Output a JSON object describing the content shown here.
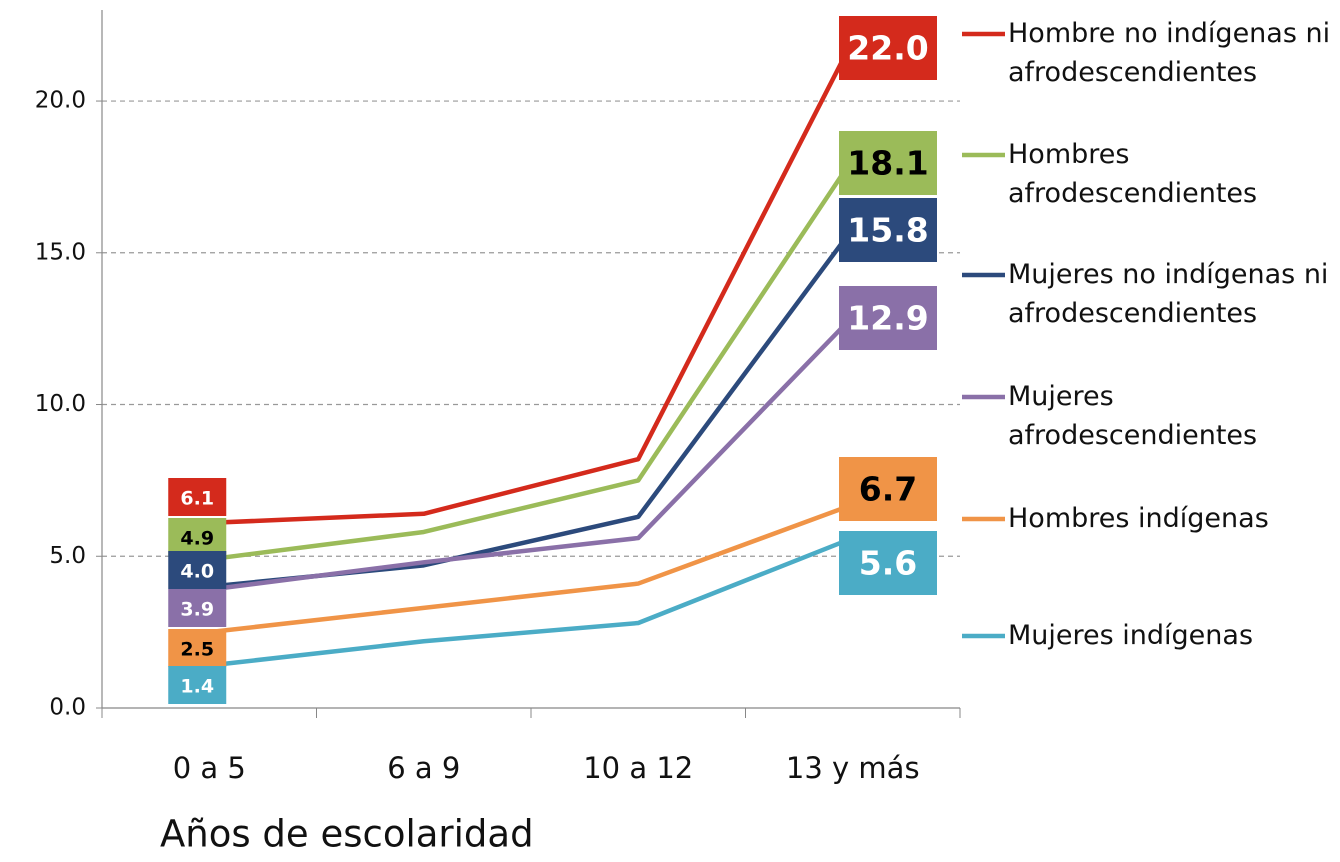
{
  "chart_data": {
    "type": "line",
    "x_label": "Años de escolaridad",
    "categories": [
      "0 a 5",
      "6 a 9",
      "10 a 12",
      "13 y más"
    ],
    "ylim": [
      0,
      23
    ],
    "yticks": [
      {
        "value": 0,
        "label": "0.0"
      },
      {
        "value": 5,
        "label": "5.0"
      },
      {
        "value": 10,
        "label": "10.0"
      },
      {
        "value": 15,
        "label": "15.0"
      },
      {
        "value": 20,
        "label": "20.0"
      }
    ],
    "grid": true,
    "legend": "right",
    "series": [
      {
        "name": "Hombre no indígenas ni afrodescendientes",
        "color": "#d42a1c",
        "values": [
          6.1,
          6.4,
          8.2,
          22.0
        ],
        "value_labels": [
          "6.1",
          null,
          null,
          "22.0"
        ]
      },
      {
        "name": "Hombres afrodescendientes",
        "color": "#9bbb59",
        "values": [
          4.9,
          5.8,
          7.5,
          18.1
        ],
        "value_labels": [
          "4.9",
          null,
          null,
          "18.1"
        ]
      },
      {
        "name": "Mujeres no indígenas ni afrodescendientes",
        "color": "#2c4a7c",
        "values": [
          4.0,
          4.7,
          6.3,
          15.8
        ],
        "value_labels": [
          "4.0",
          null,
          null,
          "15.8"
        ]
      },
      {
        "name": "Mujeres afrodescendientes",
        "color": "#8a70a8",
        "values": [
          3.9,
          4.8,
          5.6,
          12.9
        ],
        "value_labels": [
          "3.9",
          null,
          null,
          "12.9"
        ]
      },
      {
        "name": "Hombres indígenas",
        "color": "#f09447",
        "values": [
          2.5,
          3.3,
          4.1,
          6.7
        ],
        "value_labels": [
          "2.5",
          null,
          null,
          "6.7"
        ]
      },
      {
        "name": "Mujeres indígenas",
        "color": "#4bacc6",
        "values": [
          1.4,
          2.2,
          2.8,
          5.6
        ],
        "value_labels": [
          "1.4",
          null,
          null,
          "5.6"
        ]
      }
    ]
  }
}
